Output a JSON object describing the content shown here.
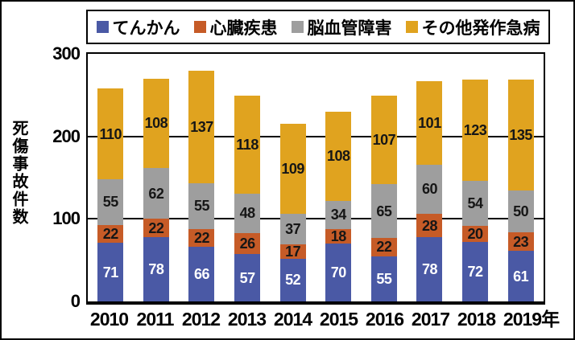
{
  "chart_data": {
    "type": "bar",
    "stacked": true,
    "ylabel": "死傷事故件数",
    "xlabel": "",
    "x_axis_unit_suffix": "年",
    "categories": [
      "2010",
      "2011",
      "2012",
      "2013",
      "2014",
      "2015",
      "2016",
      "2017",
      "2018",
      "2019"
    ],
    "series": [
      {
        "name": "てんかん",
        "color": "#4a59a5",
        "label_color": "#ffffff",
        "values": [
          71,
          78,
          66,
          57,
          52,
          70,
          55,
          78,
          72,
          61
        ]
      },
      {
        "name": "心臓疾患",
        "color": "#c65b27",
        "label_color": "#161616",
        "values": [
          22,
          22,
          22,
          26,
          17,
          18,
          22,
          28,
          20,
          23
        ]
      },
      {
        "name": "脳血管障害",
        "color": "#9e9e9e",
        "label_color": "#161616",
        "values": [
          55,
          62,
          55,
          48,
          37,
          34,
          65,
          60,
          54,
          50
        ]
      },
      {
        "name": "その他発作急病",
        "color": "#e0a31f",
        "label_color": "#161616",
        "values": [
          110,
          108,
          137,
          118,
          109,
          108,
          107,
          101,
          123,
          135
        ]
      }
    ],
    "ylim": [
      0,
      300
    ],
    "yticks": [
      0,
      100,
      200,
      300
    ],
    "gridlines": [
      100,
      200
    ],
    "grid_on": true,
    "legend_position": "top",
    "bar_value_labels": "centered-in-segment"
  },
  "legend": {
    "items": [
      {
        "label": "てんかん",
        "color": "#4a59a5"
      },
      {
        "label": "心臓疾患",
        "color": "#c65b27"
      },
      {
        "label": "脳血管障害",
        "color": "#9e9e9e"
      },
      {
        "label": "その他発作急病",
        "color": "#e0a31f"
      }
    ]
  },
  "axes": {
    "y_title": "死傷事故件数",
    "y_tick_labels": [
      "300",
      "200",
      "100",
      "0"
    ],
    "x_tick_labels": [
      "2010",
      "2011",
      "2012",
      "2013",
      "2014",
      "2015",
      "2016",
      "2017",
      "2018",
      "2019"
    ],
    "x_suffix": "年"
  }
}
